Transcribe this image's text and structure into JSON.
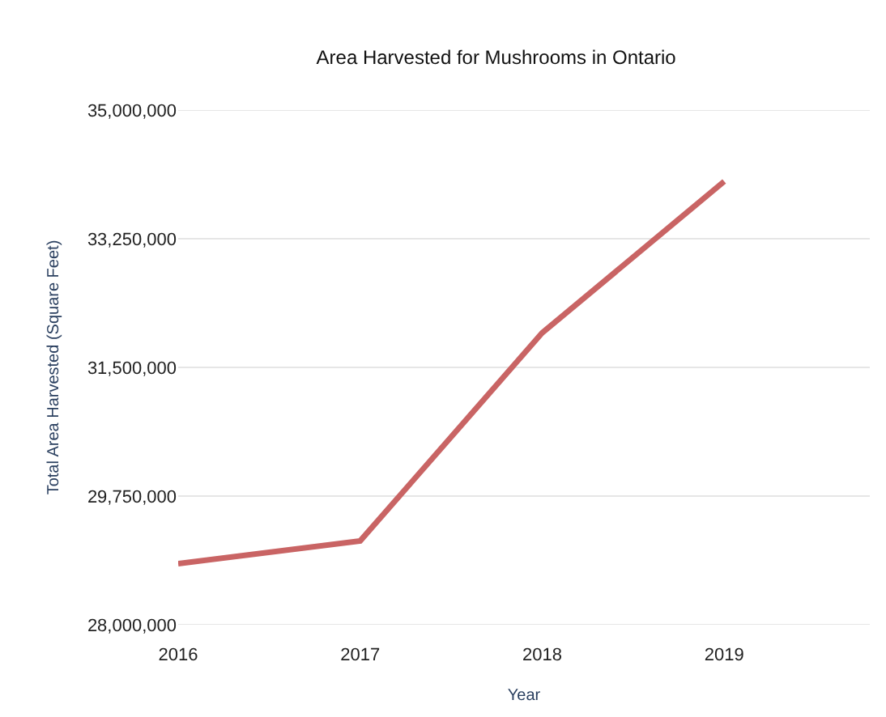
{
  "chart_data": {
    "type": "line",
    "title": "Area Harvested for Mushrooms in Ontario",
    "xlabel": "Year",
    "ylabel": "Total Area Harvested (Square Feet)",
    "x": [
      2016,
      2017,
      2018,
      2019
    ],
    "series": [
      {
        "color": "#c96464",
        "values": [
          28830000,
          29140000,
          31970000,
          34030000
        ]
      }
    ],
    "xlim": [
      2016,
      2019.8
    ],
    "xticks": [
      2016,
      2017,
      2018,
      2019
    ],
    "ylim": [
      28000000,
      35000000
    ],
    "yticks": [
      {
        "value": 28000000,
        "label": "28,000,000"
      },
      {
        "value": 29750000,
        "label": "29,750,000"
      },
      {
        "value": 31500000,
        "label": "31,500,000"
      },
      {
        "value": 33250000,
        "label": "33,250,000"
      },
      {
        "value": 35000000,
        "label": "35,000,000"
      }
    ],
    "grid": "y",
    "marker": "none",
    "line_style": "solid"
  }
}
